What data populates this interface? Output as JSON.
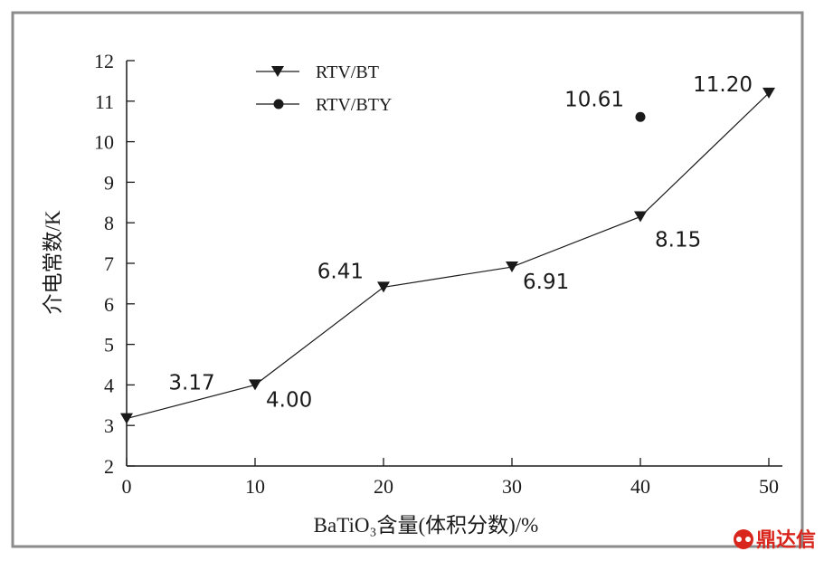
{
  "chart_data": {
    "type": "line",
    "xlabel": "BaTiO₃含量(体积分数)/%",
    "ylabel": "介电常数/K",
    "xlim": [
      0,
      50
    ],
    "ylim": [
      2,
      12
    ],
    "xticks": [
      0,
      10,
      20,
      30,
      40,
      50
    ],
    "yticks": [
      2,
      3,
      4,
      5,
      6,
      7,
      8,
      9,
      10,
      11,
      12
    ],
    "grid": false,
    "legend_position": "top-left",
    "series": [
      {
        "name": "RTV/BT",
        "marker": "triangle-down",
        "line": true,
        "points": [
          {
            "x": 0,
            "y": 3.17,
            "label": "3.17"
          },
          {
            "x": 10,
            "y": 4.0,
            "label": "4.00"
          },
          {
            "x": 20,
            "y": 6.41,
            "label": "6.41"
          },
          {
            "x": 30,
            "y": 6.91,
            "label": "6.91"
          },
          {
            "x": 40,
            "y": 8.15,
            "label": "8.15"
          },
          {
            "x": 50,
            "y": 11.2,
            "label": "11.20"
          }
        ]
      },
      {
        "name": "RTV/BTY",
        "marker": "circle",
        "line": false,
        "points": [
          {
            "x": 40,
            "y": 10.61,
            "label": "10.61"
          }
        ]
      }
    ]
  },
  "watermark": {
    "text": "鼎达信",
    "icon": "logo-icon",
    "color": "#d9261c"
  },
  "colors": {
    "frame": "#8c8c8c",
    "ink": "#1a1a1a"
  }
}
